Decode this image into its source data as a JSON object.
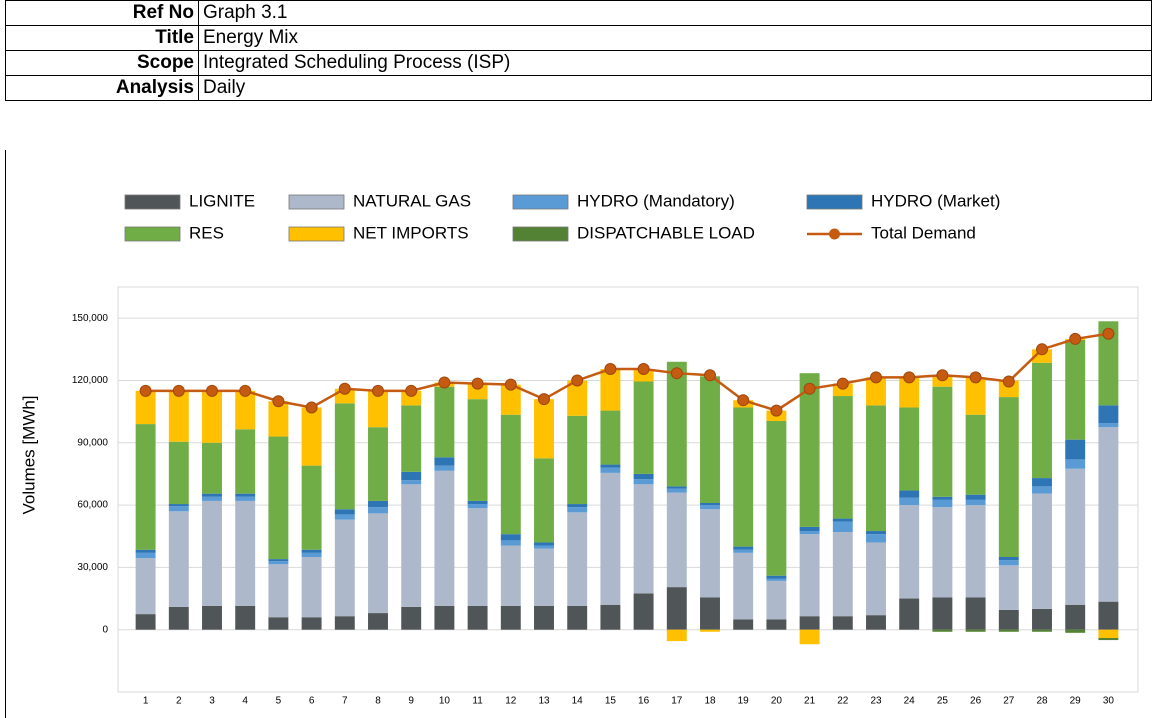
{
  "header": {
    "rows": [
      [
        "Ref No",
        "Graph 3.1"
      ],
      [
        "Title",
        "Energy Mix"
      ],
      [
        "Scope",
        "Integrated Scheduling Process (ISP)"
      ],
      [
        "Analysis",
        "Daily"
      ]
    ]
  },
  "chart_data": {
    "type": "bar",
    "stacked": true,
    "y_label": "Volumes [MWh]",
    "categories": [
      "1",
      "2",
      "3",
      "4",
      "5",
      "6",
      "7",
      "8",
      "9",
      "10",
      "11",
      "12",
      "13",
      "14",
      "15",
      "16",
      "17",
      "18",
      "19",
      "20",
      "21",
      "22",
      "23",
      "24",
      "25",
      "26",
      "27",
      "28",
      "29",
      "30"
    ],
    "ylim": [
      -30000,
      165000
    ],
    "yticks": [
      0,
      {
        "value": 30000,
        "label": "30,000"
      },
      {
        "value": 60000,
        "label": "60,000"
      },
      {
        "value": 90000,
        "label": "90,000"
      },
      {
        "value": 120000,
        "label": "120,000"
      },
      {
        "value": 150000,
        "label": "150,000"
      }
    ],
    "grid": true,
    "series": [
      {
        "name": "LIGNITE",
        "color": "#505557",
        "type": "bar",
        "values": [
          7500,
          11000,
          11500,
          11500,
          6000,
          6000,
          6500,
          8000,
          11000,
          11500,
          11500,
          11500,
          11500,
          11500,
          12000,
          17500,
          20500,
          15500,
          5000,
          5000,
          6500,
          6500,
          7000,
          15000,
          15500,
          15500,
          9500,
          10000,
          12000,
          13500
        ]
      },
      {
        "name": "NATURAL GAS",
        "color": "#adb9ca",
        "type": "bar",
        "values": [
          27000,
          46000,
          50500,
          50500,
          25500,
          29000,
          46500,
          48000,
          59000,
          65000,
          47000,
          29000,
          27500,
          45000,
          63500,
          52500,
          45500,
          42500,
          32000,
          18500,
          39500,
          40500,
          35000,
          45000,
          43500,
          44500,
          21500,
          55500,
          65500,
          84000
        ]
      },
      {
        "name": "HYDRO (Mandatory)",
        "color": "#5b9bd5",
        "type": "bar",
        "values": [
          2500,
          2500,
          2000,
          2000,
          1500,
          2000,
          2500,
          3000,
          2000,
          2500,
          2000,
          2500,
          1500,
          2500,
          2500,
          2500,
          2000,
          2000,
          1500,
          1000,
          1500,
          5000,
          4000,
          3500,
          3500,
          2500,
          2500,
          3500,
          4500,
          2000
        ]
      },
      {
        "name": "HYDRO (Market)",
        "color": "#2e75b6",
        "type": "bar",
        "values": [
          1500,
          1000,
          1500,
          1500,
          1000,
          1500,
          2500,
          3000,
          4000,
          4000,
          1500,
          3000,
          1500,
          1500,
          1500,
          2500,
          1000,
          1000,
          1500,
          1500,
          2000,
          1500,
          1500,
          3500,
          1500,
          2500,
          1500,
          4000,
          9500,
          8500
        ]
      },
      {
        "name": "RES",
        "color": "#70ad47",
        "type": "bar",
        "values": [
          60500,
          30000,
          24500,
          31000,
          59000,
          40500,
          51000,
          35500,
          32000,
          34000,
          49000,
          57500,
          40500,
          42500,
          26000,
          44500,
          60000,
          61000,
          67000,
          74500,
          74000,
          59000,
          60500,
          40000,
          53000,
          38500,
          77000,
          55500,
          48000,
          40500
        ]
      },
      {
        "name": "NET IMPORTS",
        "color": "#ffc000",
        "type": "bar",
        "values": [
          16000,
          24500,
          25000,
          18500,
          17000,
          28000,
          7000,
          17500,
          7000,
          2000,
          8000,
          14500,
          28500,
          17000,
          20000,
          6000,
          -5500,
          -1000,
          3500,
          5000,
          -7000,
          6000,
          13500,
          14500,
          5500,
          18000,
          8000,
          6500,
          500,
          -4000
        ]
      },
      {
        "name": "DISPATCHABLE LOAD",
        "color": "#548235",
        "type": "bar",
        "values": [
          0,
          0,
          0,
          0,
          0,
          0,
          0,
          0,
          0,
          0,
          0,
          0,
          0,
          0,
          0,
          0,
          0,
          0,
          0,
          0,
          0,
          0,
          0,
          0,
          -1000,
          -1000,
          -1000,
          -1000,
          -1500,
          -1000
        ]
      },
      {
        "name": "Total Demand",
        "color": "#c55a11",
        "type": "line",
        "values": [
          115000,
          115000,
          115000,
          115000,
          110000,
          107000,
          116000,
          115000,
          115000,
          119000,
          118500,
          118000,
          111000,
          120000,
          125500,
          125500,
          123500,
          122500,
          110500,
          105500,
          116000,
          118500,
          121500,
          121500,
          122500,
          121500,
          119500,
          135000,
          140000,
          142500
        ]
      }
    ]
  }
}
